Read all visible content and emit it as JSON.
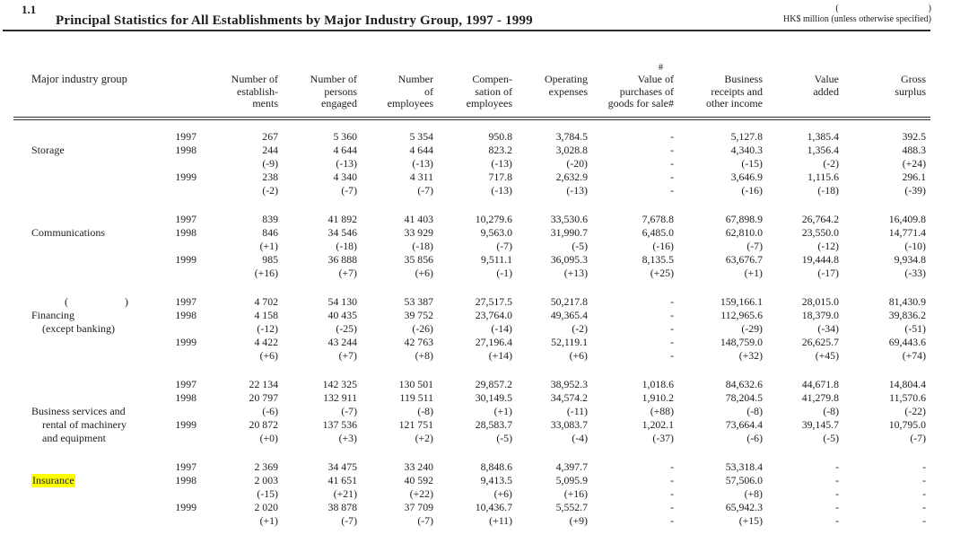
{
  "page": {
    "section_number": "1.1",
    "title": "Principal Statistics for All Establishments by Major Industry Group, 1997 - 1999",
    "unit_note_top": "(                                        )",
    "unit_note": "HK$ million (unless otherwise specified)"
  },
  "table": {
    "row_header": "Major industry group",
    "columns": [
      {
        "lines": [
          "Number of",
          "establish-",
          "ments"
        ]
      },
      {
        "lines": [
          "Number of",
          "persons",
          "engaged"
        ]
      },
      {
        "lines": [
          "Number",
          "of",
          "employees"
        ]
      },
      {
        "lines": [
          "Compen-",
          "sation of",
          "employees"
        ]
      },
      {
        "lines": [
          "Operating",
          "expenses"
        ]
      },
      {
        "lines": [
          "Value of",
          "purchases of",
          "goods for sale#"
        ],
        "super": "#"
      },
      {
        "lines": [
          "Business",
          "receipts and",
          "other income"
        ]
      },
      {
        "lines": [
          "Value",
          "added"
        ]
      },
      {
        "lines": [
          "Gross",
          "surplus"
        ]
      }
    ],
    "groups": [
      {
        "label_lines": [
          {
            "text": "Storage",
            "indent": 0
          }
        ],
        "label_start_row": 2,
        "rows": [
          {
            "year": "1997",
            "values": [
              "267",
              "5 360",
              "5 354",
              "950.8",
              "3,784.5",
              "-",
              "5,127.8",
              "1,385.4",
              "392.5"
            ]
          },
          {
            "year": "1998",
            "values": [
              "244",
              "4 644",
              "4 644",
              "823.2",
              "3,028.8",
              "-",
              "4,340.3",
              "1,356.4",
              "488.3"
            ]
          },
          {
            "year": "",
            "values": [
              "(-9)",
              "(-13)",
              "(-13)",
              "(-13)",
              "(-20)",
              "-",
              "(-15)",
              "(-2)",
              "(+24)"
            ]
          },
          {
            "year": "1999",
            "values": [
              "238",
              "4 340",
              "4 311",
              "717.8",
              "2,632.9",
              "-",
              "3,646.9",
              "1,115.6",
              "296.1"
            ]
          },
          {
            "year": "",
            "values": [
              "(-2)",
              "(-7)",
              "(-7)",
              "(-13)",
              "(-13)",
              "-",
              "(-16)",
              "(-18)",
              "(-39)"
            ]
          }
        ]
      },
      {
        "label_lines": [
          {
            "text": "Communications",
            "indent": 0
          }
        ],
        "label_start_row": 2,
        "rows": [
          {
            "year": "1997",
            "values": [
              "839",
              "41 892",
              "41 403",
              "10,279.6",
              "33,530.6",
              "7,678.8",
              "67,898.9",
              "26,764.2",
              "16,409.8"
            ]
          },
          {
            "year": "1998",
            "values": [
              "846",
              "34 546",
              "33 929",
              "9,563.0",
              "31,990.7",
              "6,485.0",
              "62,810.0",
              "23,550.0",
              "14,771.4"
            ]
          },
          {
            "year": "",
            "values": [
              "(+1)",
              "(-18)",
              "(-18)",
              "(-7)",
              "(-5)",
              "(-16)",
              "(-7)",
              "(-12)",
              "(-10)"
            ]
          },
          {
            "year": "1999",
            "values": [
              "985",
              "36 888",
              "35 856",
              "9,511.1",
              "36,095.3",
              "8,135.5",
              "63,676.7",
              "19,444.8",
              "9,934.8"
            ]
          },
          {
            "year": "",
            "values": [
              "(+16)",
              "(+7)",
              "(+6)",
              "(-1)",
              "(+13)",
              "(+25)",
              "(+1)",
              "(-17)",
              "(-33)"
            ]
          }
        ]
      },
      {
        "label_lines": [
          {
            "text": "(                     )",
            "indent": 2
          },
          {
            "text": "Financing",
            "indent": 0
          },
          {
            "text": "(except banking)",
            "indent": 1
          }
        ],
        "label_start_row": 1,
        "rows": [
          {
            "year": "1997",
            "values": [
              "4 702",
              "54 130",
              "53 387",
              "27,517.5",
              "50,217.8",
              "-",
              "159,166.1",
              "28,015.0",
              "81,430.9"
            ]
          },
          {
            "year": "1998",
            "values": [
              "4 158",
              "40 435",
              "39 752",
              "23,764.0",
              "49,365.4",
              "-",
              "112,965.6",
              "18,379.0",
              "39,836.2"
            ]
          },
          {
            "year": "",
            "values": [
              "(-12)",
              "(-25)",
              "(-26)",
              "(-14)",
              "(-2)",
              "-",
              "(-29)",
              "(-34)",
              "(-51)"
            ]
          },
          {
            "year": "1999",
            "values": [
              "4 422",
              "43 244",
              "42 763",
              "27,196.4",
              "52,119.1",
              "-",
              "148,759.0",
              "26,625.7",
              "69,443.6"
            ]
          },
          {
            "year": "",
            "values": [
              "(+6)",
              "(+7)",
              "(+8)",
              "(+14)",
              "(+6)",
              "-",
              "(+32)",
              "(+45)",
              "(+74)"
            ]
          }
        ]
      },
      {
        "label_lines": [
          {
            "text": "Business services and",
            "indent": 0
          },
          {
            "text": "rental of machinery",
            "indent": 1
          },
          {
            "text": "and equipment",
            "indent": 1
          }
        ],
        "label_start_row": 3,
        "rows": [
          {
            "year": "1997",
            "values": [
              "22 134",
              "142 325",
              "130 501",
              "29,857.2",
              "38,952.3",
              "1,018.6",
              "84,632.6",
              "44,671.8",
              "14,804.4"
            ]
          },
          {
            "year": "1998",
            "values": [
              "20 797",
              "132 911",
              "119 511",
              "30,149.5",
              "34,574.2",
              "1,910.2",
              "78,204.5",
              "41,279.8",
              "11,570.6"
            ]
          },
          {
            "year": "",
            "values": [
              "(-6)",
              "(-7)",
              "(-8)",
              "(+1)",
              "(-11)",
              "(+88)",
              "(-8)",
              "(-8)",
              "(-22)"
            ]
          },
          {
            "year": "1999",
            "values": [
              "20 872",
              "137 536",
              "121 751",
              "28,583.7",
              "33,083.7",
              "1,202.1",
              "73,664.4",
              "39,145.7",
              "10,795.0"
            ]
          },
          {
            "year": "",
            "values": [
              "(+0)",
              "(+3)",
              "(+2)",
              "(-5)",
              "(-4)",
              "(-37)",
              "(-6)",
              "(-5)",
              "(-7)"
            ]
          }
        ]
      },
      {
        "label_lines": [
          {
            "text": "Insurance",
            "indent": 0,
            "highlight": true
          }
        ],
        "label_start_row": 2,
        "rows": [
          {
            "year": "1997",
            "values": [
              "2 369",
              "34 475",
              "33 240",
              "8,848.6",
              "4,397.7",
              "-",
              "53,318.4",
              "-",
              "-"
            ]
          },
          {
            "year": "1998",
            "values": [
              "2 003",
              "41 651",
              "40 592",
              "9,413.5",
              "5,095.9",
              "-",
              "57,506.0",
              "-",
              "-"
            ]
          },
          {
            "year": "",
            "values": [
              "(-15)",
              "(+21)",
              "(+22)",
              "(+6)",
              "(+16)",
              "-",
              "(+8)",
              "-",
              "-"
            ]
          },
          {
            "year": "1999",
            "values": [
              "2 020",
              "38 878",
              "37 709",
              "10,436.7",
              "5,552.7",
              "-",
              "65,942.3",
              "-",
              "-"
            ]
          },
          {
            "year": "",
            "values": [
              "(+1)",
              "(-7)",
              "(-7)",
              "(+11)",
              "(+9)",
              "-",
              "(+15)",
              "-",
              "-"
            ]
          }
        ]
      }
    ]
  }
}
